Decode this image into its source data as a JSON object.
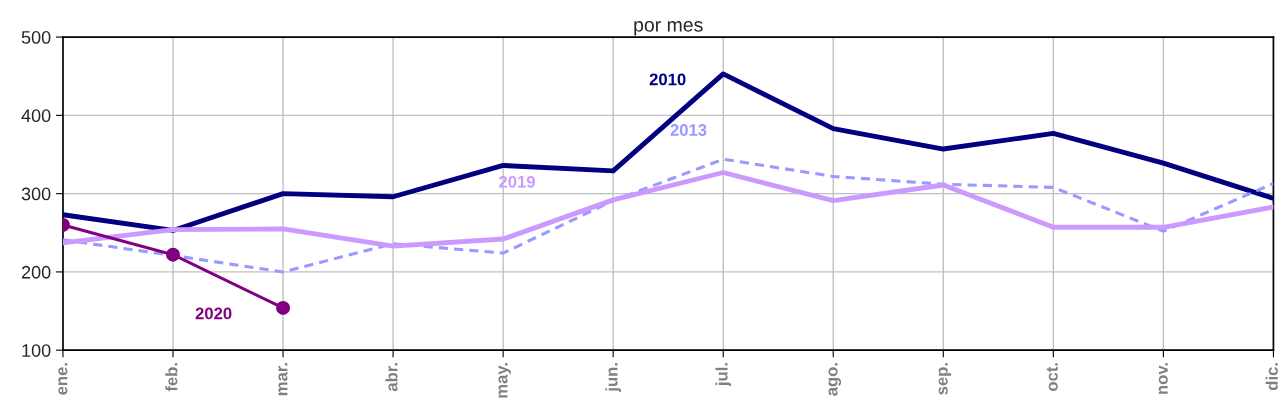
{
  "chart_data": {
    "type": "line",
    "title": "por mes",
    "categories": [
      "ene.",
      "feb.",
      "mar.",
      "abr.",
      "may.",
      "jun.",
      "jul.",
      "ago.",
      "sep.",
      "oct.",
      "nov.",
      "dic."
    ],
    "series": [
      {
        "name": "2010",
        "color": "#000080",
        "line_style": "solid",
        "values": [
          273,
          253,
          300,
          296,
          336,
          329,
          453,
          383,
          357,
          377,
          339,
          294
        ]
      },
      {
        "name": "2013",
        "color": "#9999ff",
        "line_style": "dashed",
        "values": [
          241,
          221,
          200,
          236,
          224,
          291,
          344,
          322,
          312,
          308,
          252,
          313
        ]
      },
      {
        "name": "2019",
        "color": "#cc99ff",
        "line_style": "solid",
        "values": [
          237,
          254,
          255,
          233,
          242,
          292,
          327,
          291,
          311,
          257,
          257,
          283
        ]
      },
      {
        "name": "2020",
        "color": "#800080",
        "line_style": "solid",
        "marker": "circle",
        "values": [
          260,
          222,
          154,
          null,
          null,
          null,
          null,
          null,
          null,
          null,
          null,
          null
        ]
      }
    ],
    "ylim": [
      100,
      500
    ],
    "yticks": [
      100,
      200,
      300,
      400,
      500
    ],
    "grid": true,
    "legend": false
  }
}
